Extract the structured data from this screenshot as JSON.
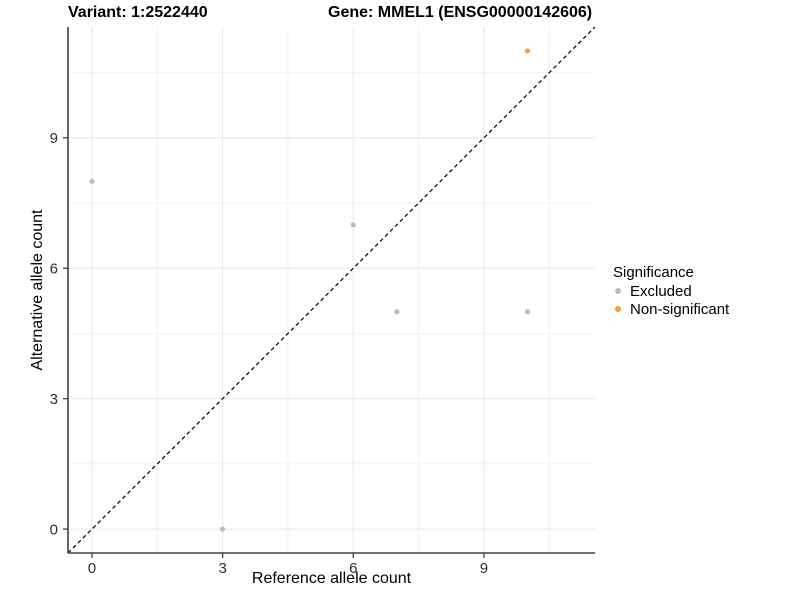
{
  "chart_data": {
    "type": "scatter",
    "title_left": "Variant: 1:2522440",
    "title_right": "Gene: MMEL1 (ENSG00000142606)",
    "xlabel": "Reference allele count",
    "ylabel": "Alternative allele count",
    "xlim": [
      -0.55,
      11.55
    ],
    "ylim": [
      -0.55,
      11.55
    ],
    "major_ticks": [
      0,
      3,
      6,
      9
    ],
    "minor_gridlines": [
      1.5,
      4.5,
      7.5,
      10.5
    ],
    "identity_line": {
      "shown": true,
      "from": [
        -0.55,
        -0.55
      ],
      "to": [
        11.55,
        11.55
      ],
      "style": "dashed",
      "color": "#000000"
    },
    "series": [
      {
        "name": "Excluded",
        "color": "#BCBCBC",
        "points": [
          [
            0,
            8
          ],
          [
            3,
            0
          ],
          [
            6,
            7
          ],
          [
            7,
            5
          ],
          [
            10,
            5
          ]
        ]
      },
      {
        "name": "Non-significant",
        "color": "#F9A02E",
        "points": [
          [
            10,
            11
          ]
        ]
      }
    ],
    "legend": {
      "title": "Significance",
      "position": "right"
    },
    "grid": "on",
    "point_radius_px": 2.6,
    "colors": {
      "axis_line": "#404040",
      "tick_label": "#303030",
      "grid_major": "#E7E7E7",
      "grid_minor": "#F2F2F2"
    }
  }
}
